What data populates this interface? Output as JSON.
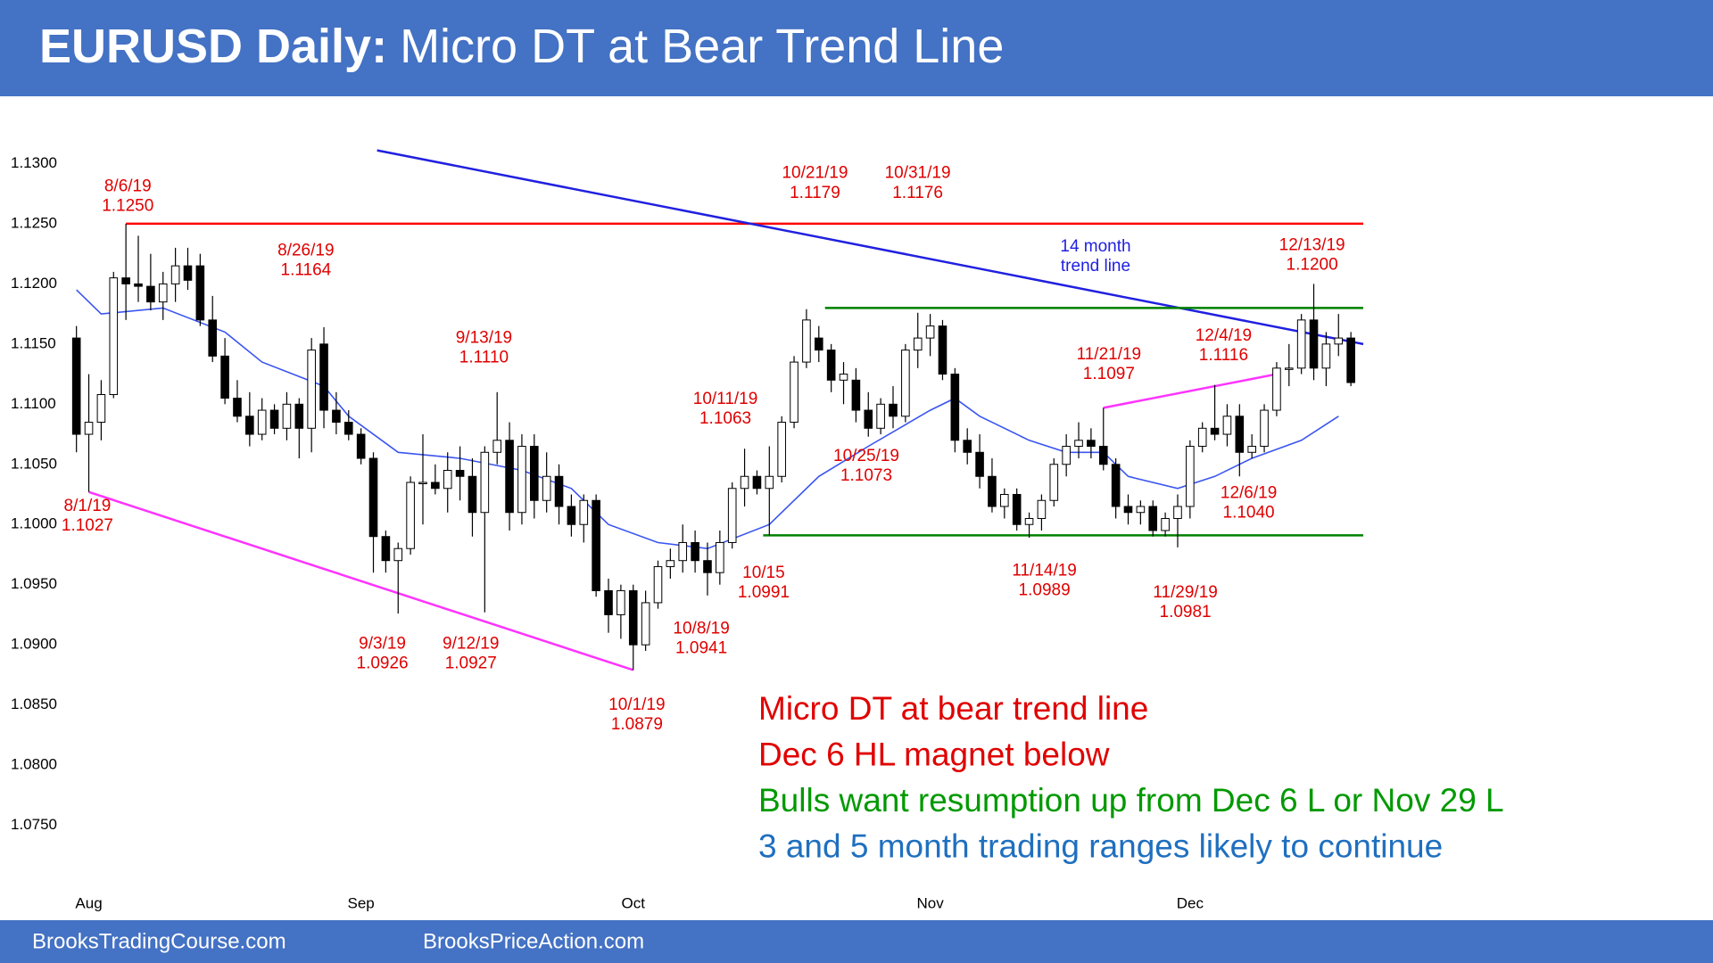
{
  "chart_data": {
    "type": "candlestick",
    "title_bold": "EURUSD Daily:",
    "title_rest": "Micro DT at Bear Trend Line",
    "footer": [
      "BrooksTradingCourse.com",
      "BrooksPriceAction.com"
    ],
    "xlim": [
      -1,
      104
    ],
    "xticks": [
      {
        "value": 1,
        "label": "Aug"
      },
      {
        "value": 23,
        "label": "Sep"
      },
      {
        "value": 45,
        "label": "Oct"
      },
      {
        "value": 69,
        "label": "Nov"
      },
      {
        "value": 90,
        "label": "Dec"
      }
    ],
    "ylim": [
      1.07,
      1.135
    ],
    "yticks": [
      {
        "value": 1.13,
        "label": "1.1300"
      },
      {
        "value": 1.125,
        "label": "1.1250"
      },
      {
        "value": 1.12,
        "label": "1.1200"
      },
      {
        "value": 1.115,
        "label": "1.1150"
      },
      {
        "value": 1.11,
        "label": "1.1100"
      },
      {
        "value": 1.105,
        "label": "1.1050"
      },
      {
        "value": 1.1,
        "label": "1.1000"
      },
      {
        "value": 1.095,
        "label": "1.0950"
      },
      {
        "value": 1.09,
        "label": "1.0900"
      },
      {
        "value": 1.085,
        "label": "1.0850"
      },
      {
        "value": 1.08,
        "label": "1.0800"
      },
      {
        "value": 1.075,
        "label": "1.0750"
      }
    ],
    "grid": false,
    "up_color": "#ffffff",
    "down_color": "#000000",
    "open": [
      1.1155,
      1.1075,
      1.1085,
      1.1108,
      1.1205,
      1.12,
      1.1198,
      1.1185,
      1.12,
      1.1215,
      1.1215,
      1.117,
      1.114,
      1.1105,
      1.109,
      1.1075,
      1.1095,
      1.108,
      1.11,
      1.108,
      1.115,
      1.1095,
      1.1085,
      1.1075,
      1.1055,
      1.099,
      1.097,
      1.098,
      1.1035,
      1.1035,
      1.103,
      1.1045,
      1.104,
      1.101,
      1.106,
      1.107,
      1.101,
      1.1065,
      1.102,
      1.104,
      1.1015,
      1.1,
      1.102,
      1.0945,
      1.0925,
      1.0945,
      1.09,
      1.0935,
      1.0965,
      1.097,
      1.0985,
      1.097,
      1.096,
      1.0985,
      1.103,
      1.104,
      1.103,
      1.104,
      1.1085,
      1.1135,
      1.1155,
      1.1145,
      1.112,
      1.112,
      1.1095,
      1.108,
      1.11,
      1.109,
      1.1145,
      1.1155,
      1.1165,
      1.1125,
      1.107,
      1.106,
      1.104,
      1.1015,
      1.1025,
      1.1,
      1.1005,
      1.102,
      1.105,
      1.1065,
      1.107,
      1.1065,
      1.105,
      1.1015,
      1.101,
      1.1015,
      1.0995,
      1.1005,
      1.1015,
      1.1065,
      1.108,
      1.1075,
      1.109,
      1.106,
      1.1065,
      1.1095,
      1.113,
      1.113,
      1.117,
      1.113,
      1.115,
      1.1155
    ],
    "high": [
      1.1165,
      1.1125,
      1.112,
      1.121,
      1.125,
      1.124,
      1.1225,
      1.121,
      1.123,
      1.123,
      1.1225,
      1.119,
      1.1155,
      1.112,
      1.111,
      1.1105,
      1.11,
      1.111,
      1.1105,
      1.1155,
      1.1164,
      1.111,
      1.1095,
      1.108,
      1.106,
      1.0995,
      1.0985,
      1.104,
      1.1075,
      1.105,
      1.106,
      1.1065,
      1.1055,
      1.1065,
      1.111,
      1.1085,
      1.1075,
      1.1075,
      1.106,
      1.105,
      1.1025,
      1.1025,
      1.1025,
      1.0955,
      1.095,
      1.095,
      1.0945,
      1.097,
      1.098,
      1.1,
      1.0995,
      1.0985,
      1.0995,
      1.1035,
      1.1063,
      1.1045,
      1.1065,
      1.109,
      1.114,
      1.1179,
      1.1165,
      1.115,
      1.1135,
      1.113,
      1.111,
      1.1105,
      1.1115,
      1.115,
      1.1176,
      1.1175,
      1.117,
      1.113,
      1.108,
      1.1075,
      1.1055,
      1.103,
      1.103,
      1.101,
      1.1025,
      1.1055,
      1.1075,
      1.1085,
      1.108,
      1.1097,
      1.1055,
      1.1025,
      1.102,
      1.102,
      1.101,
      1.1025,
      1.107,
      1.1085,
      1.1116,
      1.11,
      1.11,
      1.1075,
      1.11,
      1.1135,
      1.115,
      1.1175,
      1.12,
      1.116,
      1.1175,
      1.116
    ],
    "low": [
      1.106,
      1.1027,
      1.107,
      1.1105,
      1.117,
      1.1185,
      1.1178,
      1.117,
      1.1185,
      1.1195,
      1.1165,
      1.1135,
      1.11,
      1.1085,
      1.1065,
      1.107,
      1.1075,
      1.107,
      1.1055,
      1.106,
      1.108,
      1.1075,
      1.107,
      1.105,
      1.096,
      1.096,
      1.0926,
      1.0975,
      1.1,
      1.1025,
      1.101,
      1.102,
      1.099,
      1.0927,
      1.105,
      1.0995,
      1.1,
      1.1005,
      1.101,
      1.1,
      1.099,
      1.0985,
      1.094,
      1.091,
      1.0905,
      1.0879,
      1.0895,
      1.093,
      1.0955,
      1.096,
      1.096,
      1.0941,
      1.095,
      1.098,
      1.1015,
      1.1025,
      1.0991,
      1.1035,
      1.108,
      1.113,
      1.1135,
      1.111,
      1.11,
      1.1085,
      1.1073,
      1.1075,
      1.108,
      1.1085,
      1.113,
      1.114,
      1.112,
      1.106,
      1.105,
      1.103,
      1.101,
      1.1005,
      1.0995,
      1.0989,
      1.0995,
      1.1015,
      1.104,
      1.1055,
      1.1055,
      1.1045,
      1.1005,
      1.1,
      1.1,
      1.099,
      1.099,
      1.0981,
      1.1005,
      1.106,
      1.107,
      1.1065,
      1.104,
      1.1055,
      1.106,
      1.109,
      1.1115,
      1.1125,
      1.112,
      1.1115,
      1.114,
      1.1115
    ],
    "close": [
      1.1075,
      1.1085,
      1.1108,
      1.1205,
      1.12,
      1.1198,
      1.1185,
      1.12,
      1.1215,
      1.1203,
      1.117,
      1.114,
      1.1105,
      1.109,
      1.1075,
      1.1095,
      1.108,
      1.11,
      1.108,
      1.1145,
      1.1095,
      1.1085,
      1.1075,
      1.1055,
      1.099,
      1.097,
      1.098,
      1.1035,
      1.1035,
      1.103,
      1.1045,
      1.104,
      1.101,
      1.106,
      1.107,
      1.101,
      1.1065,
      1.102,
      1.104,
      1.1015,
      1.1,
      1.102,
      1.0945,
      1.0925,
      1.0945,
      1.09,
      1.0935,
      1.0965,
      1.097,
      1.0985,
      1.097,
      1.096,
      1.0985,
      1.103,
      1.104,
      1.103,
      1.104,
      1.1085,
      1.1135,
      1.117,
      1.1145,
      1.112,
      1.1125,
      1.1095,
      1.108,
      1.11,
      1.109,
      1.1145,
      1.1155,
      1.1165,
      1.1125,
      1.107,
      1.106,
      1.104,
      1.1015,
      1.1025,
      1.1,
      1.1005,
      1.102,
      1.105,
      1.1065,
      1.107,
      1.1065,
      1.105,
      1.1015,
      1.101,
      1.1015,
      1.0995,
      1.1005,
      1.1015,
      1.1065,
      1.108,
      1.1075,
      1.109,
      1.106,
      1.1065,
      1.1095,
      1.113,
      1.113,
      1.117,
      1.113,
      1.115,
      1.1155,
      1.1118
    ],
    "moving_average": {
      "color": "#3a55f0",
      "x": [
        0,
        2,
        7,
        12,
        15,
        20,
        22,
        26,
        31,
        36,
        40,
        43,
        47,
        51,
        56,
        60,
        64,
        69,
        71,
        73,
        77,
        80,
        83,
        85,
        89,
        92,
        95,
        99,
        102
      ],
      "values": [
        1.1195,
        1.1175,
        1.118,
        1.116,
        1.1135,
        1.1115,
        1.109,
        1.106,
        1.1055,
        1.1045,
        1.103,
        1.1,
        1.0985,
        1.098,
        1.1,
        1.104,
        1.1065,
        1.1095,
        1.1105,
        1.109,
        1.107,
        1.106,
        1.106,
        1.104,
        1.103,
        1.104,
        1.1055,
        1.107,
        1.109
      ]
    },
    "lines": [
      {
        "color": "#ff0000",
        "x": [
          4,
          104
        ],
        "values": [
          1.125,
          1.125
        ]
      },
      {
        "color": "#2020e0",
        "x": [
          24.3,
          104
        ],
        "values": [
          1.1311,
          1.115
        ]
      },
      {
        "color": "#008000",
        "x": [
          60.5,
          104
        ],
        "values": [
          1.118,
          1.118
        ]
      },
      {
        "color": "#008000",
        "x": [
          55.5,
          104
        ],
        "values": [
          1.0991,
          1.0991
        ]
      },
      {
        "color": "#ff33ff",
        "x": [
          1,
          45
        ],
        "values": [
          1.1027,
          1.0879
        ]
      },
      {
        "color": "#ff33ff",
        "x": [
          83,
          97
        ],
        "values": [
          1.1097,
          1.1125
        ]
      }
    ],
    "trend_line_label": [
      "14 month",
      "trend line"
    ],
    "annotations": [
      {
        "date": "8/6/19",
        "price": "1.1250"
      },
      {
        "date": "8/1/19",
        "price": "1.1027"
      },
      {
        "date": "8/26/19",
        "price": "1.1164"
      },
      {
        "date": "9/13/19",
        "price": "1.1110"
      },
      {
        "date": "9/3/19",
        "price": "1.0926"
      },
      {
        "date": "9/12/19",
        "price": "1.0927"
      },
      {
        "date": "10/1/19",
        "price": "1.0879"
      },
      {
        "date": "10/8/19",
        "price": "1.0941"
      },
      {
        "date": "10/11/19",
        "price": "1.1063"
      },
      {
        "date": "10/15",
        "price": "1.0991"
      },
      {
        "date": "10/21/19",
        "price": "1.1179"
      },
      {
        "date": "10/31/19",
        "price": "1.1176"
      },
      {
        "date": "10/25/19",
        "price": "1.1073"
      },
      {
        "date": "11/14/19",
        "price": "1.0989"
      },
      {
        "date": "11/21/19",
        "price": "1.1097"
      },
      {
        "date": "11/29/19",
        "price": "1.0981"
      },
      {
        "date": "12/4/19",
        "price": "1.1116"
      },
      {
        "date": "12/6/19",
        "price": "1.1040"
      },
      {
        "date": "12/13/19",
        "price": "1.1200"
      }
    ],
    "notes": [
      {
        "text": "Micro DT at bear trend line",
        "color": "#e00000"
      },
      {
        "text": "Dec 6 HL magnet below",
        "color": "#e00000"
      },
      {
        "text": "Bulls want resumption up from Dec 6 L or Nov 29 L",
        "color": "#009900"
      },
      {
        "text": "3 and 5 month trading ranges likely to continue",
        "color": "#1f6fbf"
      }
    ]
  }
}
